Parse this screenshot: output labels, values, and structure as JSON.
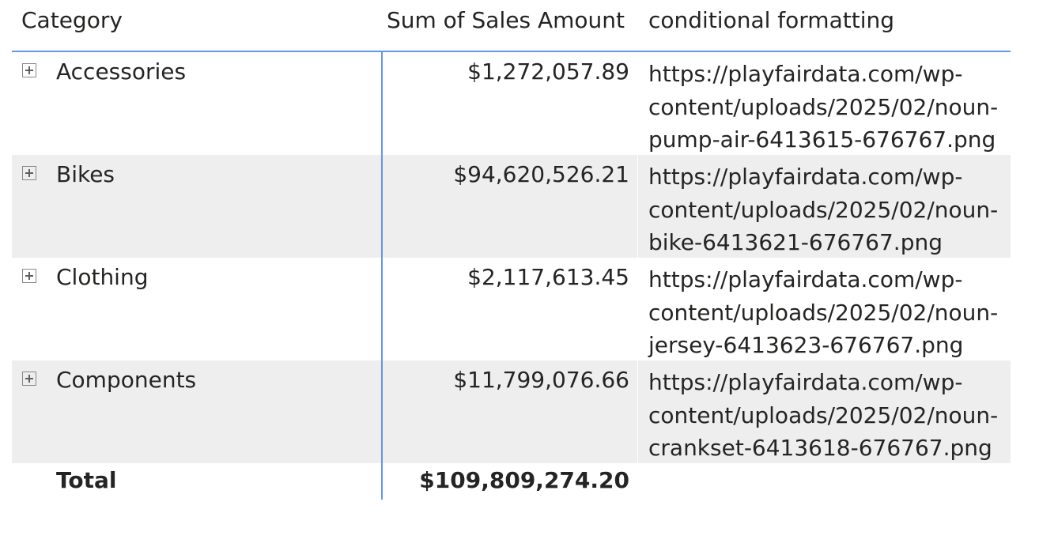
{
  "columns": {
    "category": "Category",
    "sales": "Sum of Sales Amount",
    "conditional": "conditional formatting"
  },
  "rows": [
    {
      "category": "Accessories",
      "amount": "$1,272,057.89",
      "url_lines": [
        "https://playfairdata.com/wp-",
        "content/uploads/2025/02/noun-",
        "pump-air-6413615-676767.png"
      ]
    },
    {
      "category": "Bikes",
      "amount": "$94,620,526.21",
      "url_lines": [
        "https://playfairdata.com/wp-",
        "content/uploads/2025/02/noun-",
        "bike-6413621-676767.png"
      ]
    },
    {
      "category": "Clothing",
      "amount": "$2,117,613.45",
      "url_lines": [
        "https://playfairdata.com/wp-",
        "content/uploads/2025/02/noun-",
        "jersey-6413623-676767.png"
      ]
    },
    {
      "category": "Components",
      "amount": "$11,799,076.66",
      "url_lines": [
        "https://playfairdata.com/wp-",
        "content/uploads/2025/02/noun-",
        "crankset-6413618-676767.png"
      ]
    }
  ],
  "total": {
    "label": "Total",
    "amount": "$109,809,274.20"
  },
  "icons": {
    "expand": "plus-square-icon"
  },
  "colors": {
    "header_rule": "#6495ed",
    "shaded_row": "#efeeee"
  }
}
